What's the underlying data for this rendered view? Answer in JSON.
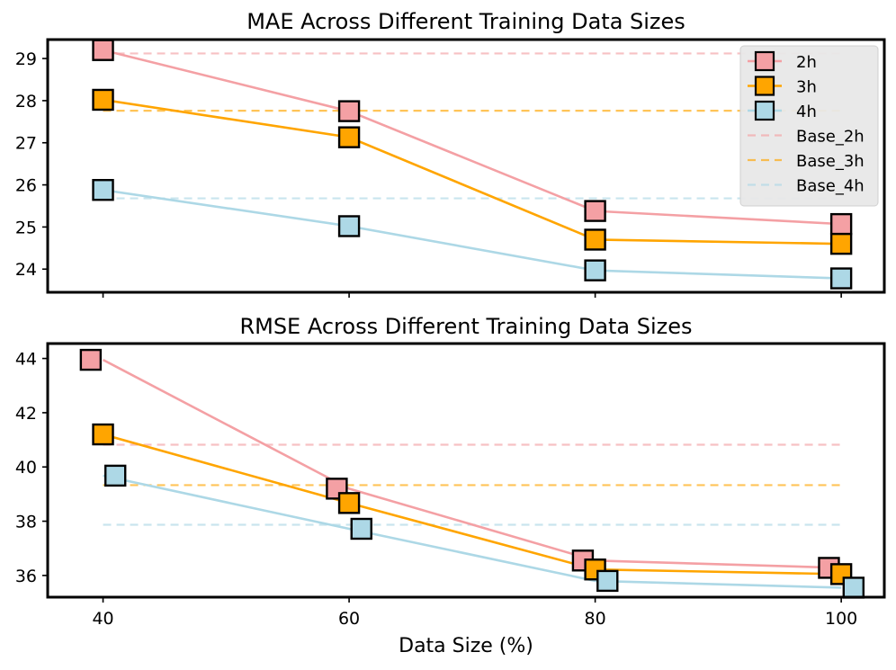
{
  "chart_data": {
    "type": "line",
    "xlabel": "Data Size (%)",
    "xlim": [
      35.5,
      103.5
    ],
    "x_ticks": [
      40,
      60,
      80,
      100
    ],
    "legend": {
      "location": "top-right of upper plot",
      "entries": [
        "2h",
        "3h",
        "4h",
        "Base_2h",
        "Base_3h",
        "Base_4h"
      ]
    },
    "colors": {
      "2h": "#f4a0a4",
      "3h": "#ffa500",
      "4h": "#add8e6",
      "marker_edge": "#000000",
      "axis": "#000000"
    },
    "panels": [
      {
        "name": "mae",
        "title": "MAE Across Different Training Data Sizes",
        "ylabel": "",
        "ylim": [
          23.45,
          29.45
        ],
        "y_ticks": [
          24,
          25,
          26,
          27,
          28,
          29
        ],
        "series": [
          {
            "name": "2h",
            "x": [
              40,
              60,
              80,
              100
            ],
            "marker_x": [
              40,
              60,
              80,
              100
            ],
            "values": [
              29.2,
              27.75,
              25.38,
              25.07
            ]
          },
          {
            "name": "3h",
            "x": [
              40,
              60,
              80,
              100
            ],
            "marker_x": [
              40,
              60,
              80,
              100
            ],
            "values": [
              28.02,
              27.13,
              24.7,
              24.6
            ]
          },
          {
            "name": "4h",
            "x": [
              40,
              60,
              80,
              100
            ],
            "marker_x": [
              40,
              60,
              80,
              100
            ],
            "values": [
              25.88,
              25.02,
              23.97,
              23.78
            ]
          }
        ],
        "baselines": [
          {
            "name": "Base_2h",
            "series": "2h",
            "value": 29.12,
            "x_range": [
              40,
              100
            ]
          },
          {
            "name": "Base_3h",
            "series": "3h",
            "value": 27.76,
            "x_range": [
              40,
              100
            ]
          },
          {
            "name": "Base_4h",
            "series": "4h",
            "value": 25.68,
            "x_range": [
              40,
              100
            ]
          }
        ]
      },
      {
        "name": "rmse",
        "title": "RMSE Across Different Training Data Sizes",
        "ylabel": "",
        "ylim": [
          35.2,
          44.55
        ],
        "y_ticks": [
          36,
          38,
          40,
          42,
          44
        ],
        "series": [
          {
            "name": "2h",
            "x": [
              40,
              60,
              80,
              100
            ],
            "marker_x": [
              39,
              59,
              79,
              99
            ],
            "values": [
              43.95,
              39.2,
              36.55,
              36.28
            ]
          },
          {
            "name": "3h",
            "x": [
              40,
              60,
              80,
              100
            ],
            "marker_x": [
              40,
              60,
              80,
              100
            ],
            "values": [
              41.2,
              38.67,
              36.22,
              36.05
            ]
          },
          {
            "name": "4h",
            "x": [
              40,
              60,
              80,
              100
            ],
            "marker_x": [
              41,
              61,
              81,
              101
            ],
            "values": [
              39.68,
              37.72,
              35.8,
              35.55
            ]
          }
        ],
        "baselines": [
          {
            "name": "Base_2h",
            "series": "2h",
            "value": 40.82,
            "x_range": [
              40,
              100
            ]
          },
          {
            "name": "Base_3h",
            "series": "3h",
            "value": 39.33,
            "x_range": [
              40,
              100
            ]
          },
          {
            "name": "Base_4h",
            "series": "4h",
            "value": 37.87,
            "x_range": [
              40,
              100
            ]
          }
        ]
      }
    ]
  }
}
